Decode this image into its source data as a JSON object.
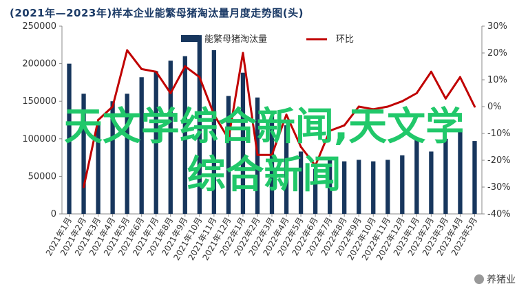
{
  "chart_data": {
    "type": "bar+line",
    "title": "(2021年—2023年)样本企业能繁母猪淘汰量月度走势图(头)",
    "categories": [
      "2021年1月",
      "2021年2月",
      "2021年3月",
      "2021年4月",
      "2021年5月",
      "2021年6月",
      "2021年7月",
      "2021年8月",
      "2021年9月",
      "2021年10月",
      "2021年11月",
      "2021年12月",
      "2022年1月",
      "2022年2月",
      "2022年3月",
      "2022年4月",
      "2022年5月",
      "2022年6月",
      "2022年7月",
      "2022年8月",
      "2022年9月",
      "2022年10月",
      "2022年11月",
      "2022年12月",
      "2023年1月",
      "2023年2月",
      "2023年3月",
      "2023年4月",
      "2023年5月"
    ],
    "series": [
      {
        "name": "能繁母猪淘汰量",
        "type": "bar",
        "axis": "left",
        "color": "#17365d",
        "values": [
          200000,
          160000,
          120000,
          150000,
          160000,
          182000,
          190000,
          204000,
          210000,
          238000,
          218000,
          157000,
          188000,
          155000,
          130000,
          118000,
          83000,
          60000,
          75000,
          70000,
          72000,
          70000,
          72000,
          78000,
          100000,
          83000,
          100000,
          113000,
          97000
        ]
      },
      {
        "name": "环比",
        "type": "line",
        "axis": "right",
        "color": "#c00000",
        "values": [
          null,
          -30,
          -5,
          0,
          21,
          14,
          13,
          5,
          15,
          11,
          -3,
          -12,
          20,
          -18,
          -18,
          -3,
          -15,
          -22,
          -9,
          -7,
          0,
          -1,
          0,
          2,
          5,
          13,
          3,
          11,
          0
        ]
      }
    ],
    "y_left": {
      "min": 0,
      "max": 250000,
      "ticks": [
        0,
        50000,
        100000,
        150000,
        200000,
        250000
      ]
    },
    "y_right": {
      "min": -40,
      "max": 30,
      "ticks": [
        -40,
        -30,
        -20,
        -10,
        0,
        10,
        20,
        30
      ],
      "unit": "%"
    },
    "legend_position": "top-center",
    "grid": false
  },
  "overlay": {
    "line1": "天文学综合新闻,天文学",
    "line2": "综合新闻"
  },
  "source_mark": "养猪业"
}
